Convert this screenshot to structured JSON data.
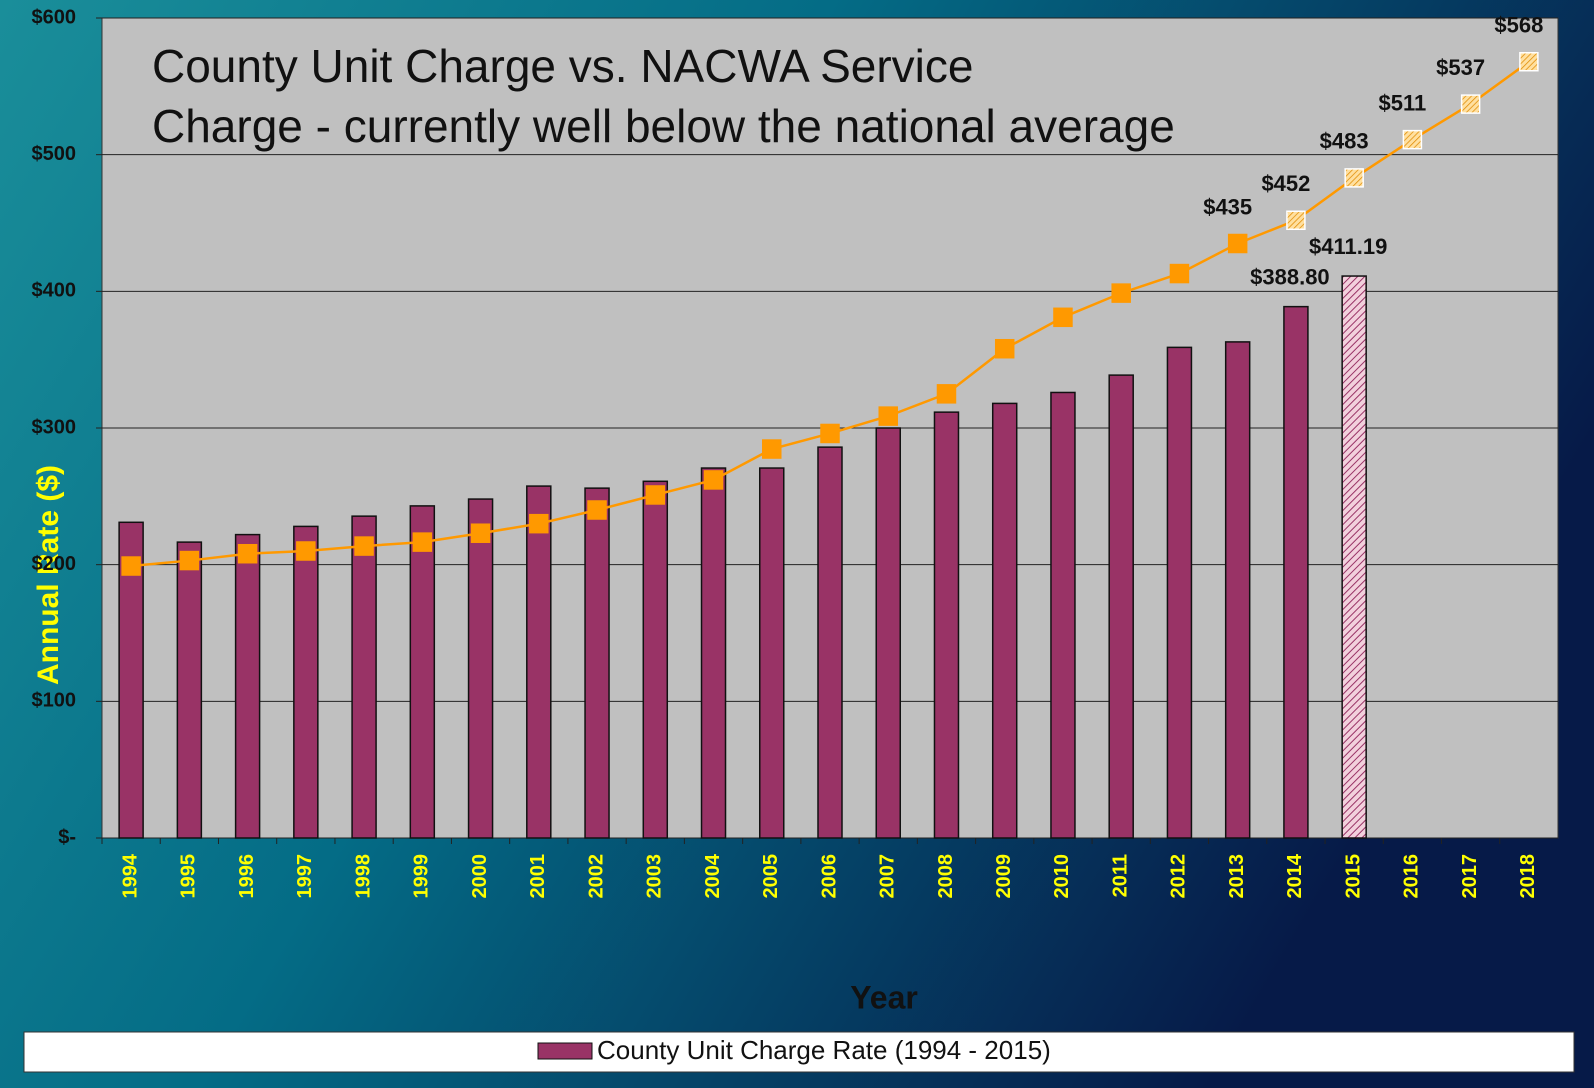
{
  "chart_data": {
    "type": "bar_line",
    "title": [
      "County Unit Charge vs. NACWA Service",
      "Charge - currently well below the national average"
    ],
    "y_label": "Annual Rate ($)",
    "x_label": "Year",
    "categories": [
      "1994",
      "1995",
      "1996",
      "1997",
      "1998",
      "1999",
      "2000",
      "2001",
      "2002",
      "2003",
      "2004",
      "2005",
      "2006",
      "2007",
      "2008",
      "2009",
      "2010",
      "2011",
      "2012",
      "2013",
      "2014",
      "2015",
      "2016",
      "2017",
      "2018"
    ],
    "series": [
      {
        "name": "County Unit Charge Rate (1994 - 2015)",
        "type": "bar",
        "color": "#993366",
        "values": [
          231,
          216.5,
          222,
          228,
          235.5,
          243,
          248,
          257.5,
          256,
          261,
          270.7,
          270.7,
          286,
          300,
          311.6,
          318,
          326,
          338.7,
          359,
          363,
          388.8,
          411.19,
          null,
          null,
          null
        ],
        "value_labels": [
          null,
          null,
          null,
          null,
          null,
          null,
          null,
          null,
          null,
          null,
          null,
          null,
          null,
          null,
          null,
          null,
          null,
          null,
          null,
          null,
          "$388.80",
          "$411.19",
          null,
          null,
          null
        ]
      },
      {
        "type": "line",
        "color": "#ff9900",
        "values": [
          199,
          203,
          208,
          210,
          213.6,
          216.5,
          223,
          230,
          240,
          251,
          262,
          284.6,
          296,
          308.7,
          325,
          358,
          381,
          398.7,
          413,
          435,
          452,
          483,
          511,
          537,
          568
        ],
        "value_labels": [
          null,
          null,
          null,
          null,
          null,
          null,
          null,
          null,
          null,
          null,
          null,
          null,
          null,
          null,
          null,
          null,
          null,
          null,
          null,
          "$435",
          "$452",
          "$483",
          "$511",
          "$537",
          "$568"
        ]
      }
    ],
    "ylim": [
      0,
      600
    ],
    "yticks": [
      {
        "value": 0,
        "label": "$-"
      },
      {
        "value": 100,
        "label": "$100"
      },
      {
        "value": 200,
        "label": "$200"
      },
      {
        "value": 300,
        "label": "$300"
      },
      {
        "value": 400,
        "label": "$400"
      },
      {
        "value": 500,
        "label": "$500"
      },
      {
        "value": 600,
        "label": "$600"
      }
    ],
    "grid": true,
    "legend": "bottom"
  }
}
